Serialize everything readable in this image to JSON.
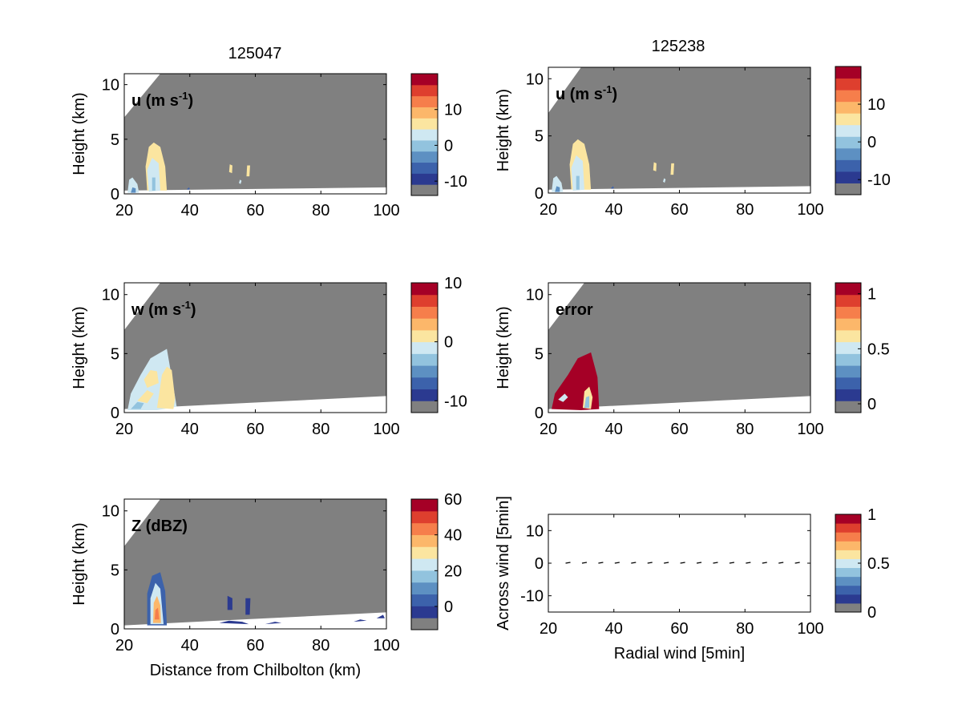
{
  "figure": {
    "left_title": "125047",
    "right_title": "125238"
  },
  "colormap": [
    "#808080",
    "#2b3a90",
    "#3c62ab",
    "#5d90c2",
    "#92c3de",
    "#cfe8f2",
    "#fbe5a0",
    "#fcb76a",
    "#f67e4b",
    "#de3f2e",
    "#a50026"
  ],
  "chart_data": [
    {
      "id": "u-125047",
      "type": "heatmap",
      "title": "125047",
      "label": "u (m s",
      "label_sup": "-1",
      "label_tail": ")",
      "ylabel": "Height (km)",
      "xlabel": "",
      "xlim": [
        20,
        100
      ],
      "ylim": [
        0,
        11
      ],
      "xticks": [
        "20",
        "40",
        "60",
        "80",
        "100"
      ],
      "yticks": [
        "0",
        "5",
        "10"
      ],
      "colorbar": {
        "ticks": [
          "10",
          "0",
          "-10"
        ],
        "range": [
          -14,
          20
        ],
        "tick_values": [
          10,
          0,
          -10
        ]
      },
      "field": "u"
    },
    {
      "id": "u-125238",
      "type": "heatmap",
      "title": "125238",
      "label": "u (m s",
      "label_sup": "-1",
      "label_tail": ")",
      "ylabel": "Height (km)",
      "xlabel": "",
      "xlim": [
        20,
        100
      ],
      "ylim": [
        0,
        11
      ],
      "xticks": [
        "20",
        "40",
        "60",
        "80",
        "100"
      ],
      "yticks": [
        "0",
        "5",
        "10"
      ],
      "colorbar": {
        "ticks": [
          "10",
          "0",
          "-10"
        ],
        "range": [
          -14,
          20
        ],
        "tick_values": [
          10,
          0,
          -10
        ]
      },
      "field": "u"
    },
    {
      "id": "w-125047",
      "type": "heatmap",
      "label": "w (m s",
      "label_sup": "-1",
      "label_tail": ")",
      "ylabel": "Height (km)",
      "xlabel": "",
      "xlim": [
        20,
        100
      ],
      "ylim": [
        0,
        11
      ],
      "xticks": [
        "20",
        "40",
        "60",
        "80",
        "100"
      ],
      "yticks": [
        "0",
        "5",
        "10"
      ],
      "colorbar": {
        "ticks": [
          "10",
          "0",
          "-10"
        ],
        "range": [
          -12,
          10
        ],
        "tick_values": [
          10,
          0,
          -10
        ]
      },
      "field": "w"
    },
    {
      "id": "error-125238",
      "type": "heatmap",
      "label": "error",
      "label_sup": "",
      "label_tail": "",
      "ylabel": "Height (km)",
      "xlabel": "",
      "xlim": [
        20,
        100
      ],
      "ylim": [
        0,
        11
      ],
      "xticks": [
        "20",
        "40",
        "60",
        "80",
        "100"
      ],
      "yticks": [
        "0",
        "5",
        "10"
      ],
      "colorbar": {
        "ticks": [
          "1",
          "0.5",
          "0"
        ],
        "range": [
          -0.08,
          1.1
        ],
        "tick_values": [
          1,
          0.5,
          0
        ]
      },
      "field": "error"
    },
    {
      "id": "z-125047",
      "type": "heatmap",
      "label": "Z (dBZ)",
      "label_sup": "",
      "label_tail": "",
      "ylabel": "Height (km)",
      "xlabel": "Distance from Chilbolton (km)",
      "xlim": [
        20,
        100
      ],
      "ylim": [
        0,
        11
      ],
      "xticks": [
        "20",
        "40",
        "60",
        "80",
        "100"
      ],
      "yticks": [
        "0",
        "5",
        "10"
      ],
      "colorbar": {
        "ticks": [
          "60",
          "40",
          "20",
          "0"
        ],
        "range": [
          -13,
          60
        ],
        "tick_values": [
          60,
          40,
          20,
          0
        ]
      },
      "field": "z"
    },
    {
      "id": "wind-vectors",
      "type": "scatter",
      "label": "",
      "label_sup": "",
      "label_tail": "",
      "ylabel": "Across wind [5min]",
      "xlabel": "Radial wind [5min]",
      "xlim": [
        20,
        100
      ],
      "ylim": [
        -15,
        15
      ],
      "xticks": [
        "20",
        "40",
        "60",
        "80",
        "100"
      ],
      "yticks": [
        "10",
        "0",
        "-10"
      ],
      "colorbar": {
        "ticks": [
          "1",
          "0.5",
          "0"
        ],
        "range": [
          0,
          1
        ],
        "tick_values": [
          1,
          0.5,
          0
        ]
      },
      "field": "vectors",
      "x": [
        26,
        31,
        36,
        41,
        46,
        51,
        56,
        61,
        66,
        71,
        76,
        81,
        86,
        91,
        96
      ],
      "y": [
        0,
        0,
        0,
        0,
        0,
        0,
        0,
        0,
        0,
        0,
        0,
        0,
        0,
        0,
        0
      ]
    }
  ]
}
